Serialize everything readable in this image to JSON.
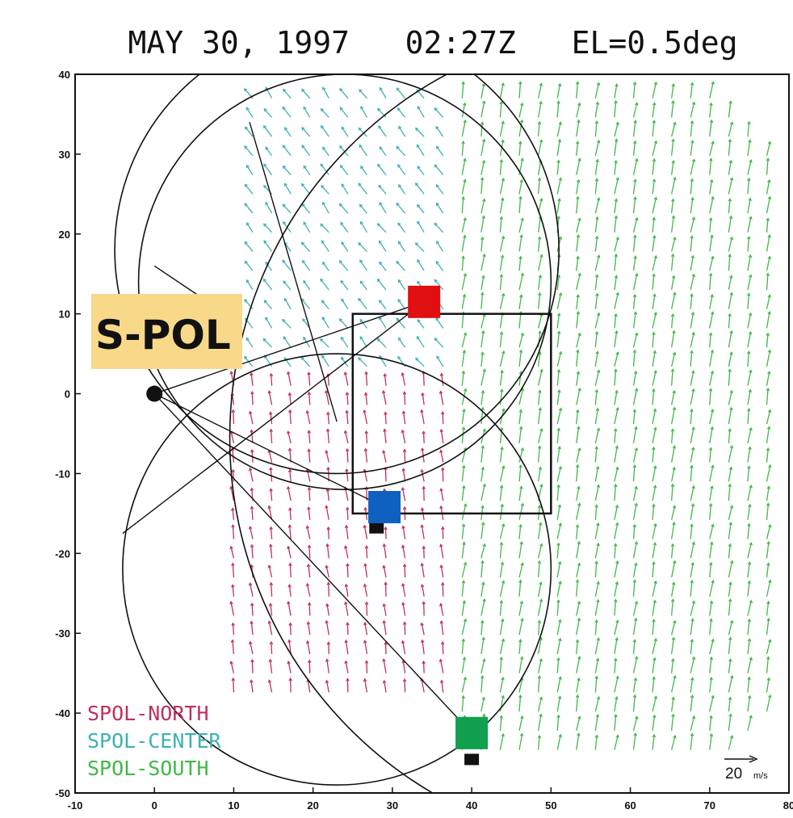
{
  "chart_data": {
    "type": "vector field",
    "title": "MAY 30, 1997   02:27Z   EL=0.5deg",
    "xlim": [
      -10,
      80
    ],
    "ylim": [
      -50,
      40
    ],
    "x_ticks": [
      "-10",
      "0",
      "10",
      "20",
      "30",
      "40",
      "50",
      "60",
      "70",
      "80"
    ],
    "y_ticks": [
      "-50",
      "-40",
      "-30",
      "-20",
      "-10",
      "0",
      "10",
      "20",
      "30",
      "40"
    ],
    "grid": false,
    "radar_label": "S-POL",
    "radar_location": [
      0,
      0
    ],
    "analysis_box": {
      "x": [
        25,
        50
      ],
      "y": [
        -15,
        10
      ]
    },
    "markers": [
      {
        "color": "#e01010",
        "x": 34,
        "y": 11.5
      },
      {
        "color": "#1060c0",
        "x": 29,
        "y": -14.2
      },
      {
        "color": "#10a050",
        "x": 40,
        "y": -42.5
      }
    ],
    "small_markers": [
      {
        "x": 28,
        "y": -16.8
      },
      {
        "x": 40,
        "y": -45.8
      }
    ],
    "legend_position": "bottom-left",
    "series": [
      {
        "name": "SPOL-NORTH",
        "color": "#c0305a"
      },
      {
        "name": "SPOL-CENTER",
        "color": "#3fb0b0"
      },
      {
        "name": "SPOL-SOUTH",
        "color": "#40b848"
      }
    ],
    "reference_vector": {
      "label": "20",
      "unit": "m/s"
    }
  }
}
